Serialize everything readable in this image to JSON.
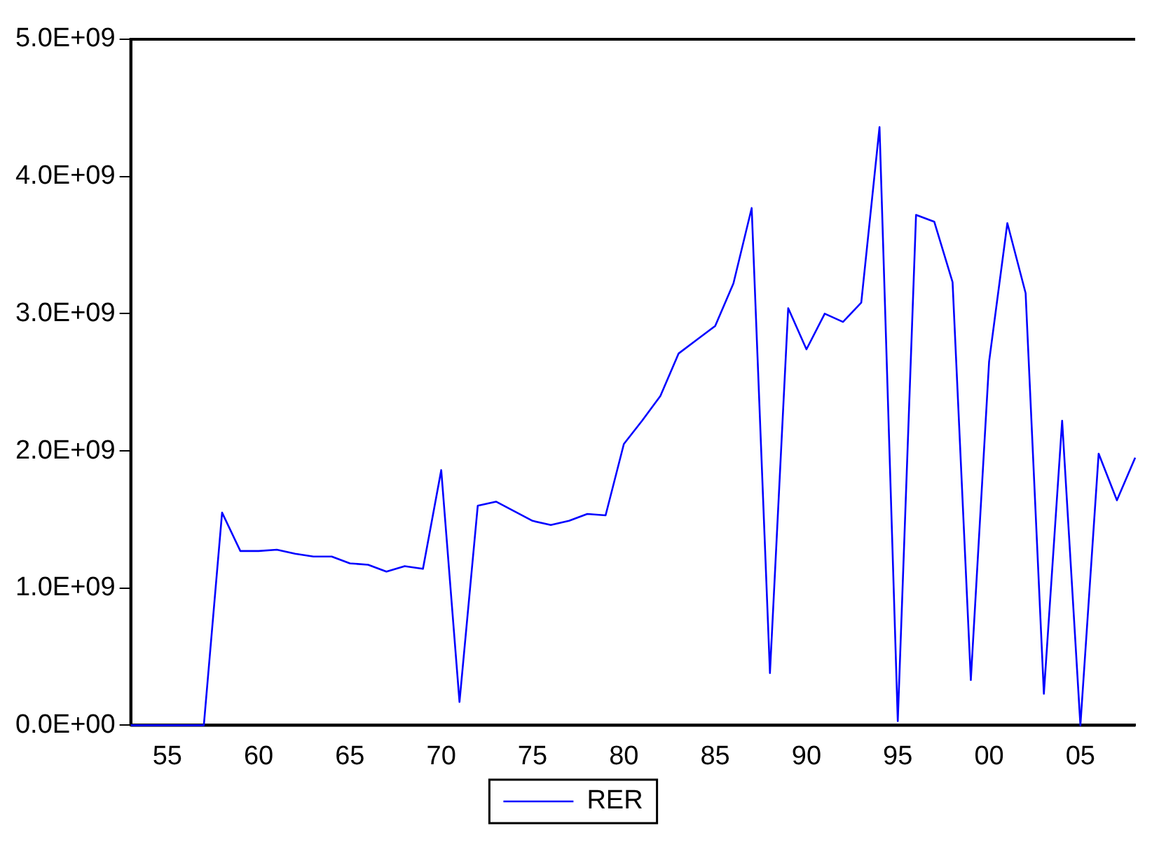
{
  "chart_data": {
    "type": "line",
    "x": [
      1953,
      1954,
      1955,
      1956,
      1957,
      1958,
      1959,
      1960,
      1961,
      1962,
      1963,
      1964,
      1965,
      1966,
      1967,
      1968,
      1969,
      1970,
      1971,
      1972,
      1973,
      1974,
      1975,
      1976,
      1977,
      1978,
      1979,
      1980,
      1981,
      1982,
      1983,
      1984,
      1985,
      1986,
      1987,
      1988,
      1989,
      1990,
      1991,
      1992,
      1993,
      1994,
      1995,
      1996,
      1997,
      1998,
      1999,
      2000,
      2001,
      2002,
      2003,
      2004,
      2005,
      2006,
      2007,
      2008
    ],
    "series": [
      {
        "name": "RER",
        "color": "#0000ff",
        "values": [
          0,
          0,
          0,
          0,
          0,
          1550000000,
          1270000000,
          1270000000,
          1280000000,
          1250000000,
          1230000000,
          1230000000,
          1180000000,
          1170000000,
          1120000000,
          1160000000,
          1140000000,
          1860000000,
          170000000,
          1600000000,
          1630000000,
          1560000000,
          1490000000,
          1460000000,
          1490000000,
          1540000000,
          1530000000,
          2050000000,
          2220000000,
          2400000000,
          2710000000,
          2810000000,
          2910000000,
          3220000000,
          3770000000,
          380000000,
          3040000000,
          2740000000,
          3000000000,
          2940000000,
          3080000000,
          4360000000,
          30000000,
          3720000000,
          3670000000,
          3230000000,
          330000000,
          2650000000,
          3660000000,
          3150000000,
          230000000,
          2220000000,
          0,
          1980000000,
          1640000000,
          1950000000
        ]
      }
    ],
    "xlim": [
      1953,
      2008
    ],
    "xticks": [
      {
        "value": 1955,
        "label": "55"
      },
      {
        "value": 1960,
        "label": "60"
      },
      {
        "value": 1965,
        "label": "65"
      },
      {
        "value": 1970,
        "label": "70"
      },
      {
        "value": 1975,
        "label": "75"
      },
      {
        "value": 1980,
        "label": "80"
      },
      {
        "value": 1985,
        "label": "85"
      },
      {
        "value": 1990,
        "label": "90"
      },
      {
        "value": 1995,
        "label": "95"
      },
      {
        "value": 2000,
        "label": "00"
      },
      {
        "value": 2005,
        "label": "05"
      }
    ],
    "ylim": [
      0,
      5000000000
    ],
    "yticks": [
      {
        "value": 0,
        "label": "0.0E+00"
      },
      {
        "value": 1000000000,
        "label": "1.0E+09"
      },
      {
        "value": 2000000000,
        "label": "2.0E+09"
      },
      {
        "value": 3000000000,
        "label": "3.0E+09"
      },
      {
        "value": 4000000000,
        "label": "4.0E+09"
      },
      {
        "value": 5000000000,
        "label": "5.0E+09"
      }
    ],
    "grid": false,
    "legend": "bottom",
    "marker": "none",
    "line_style": "solid"
  }
}
